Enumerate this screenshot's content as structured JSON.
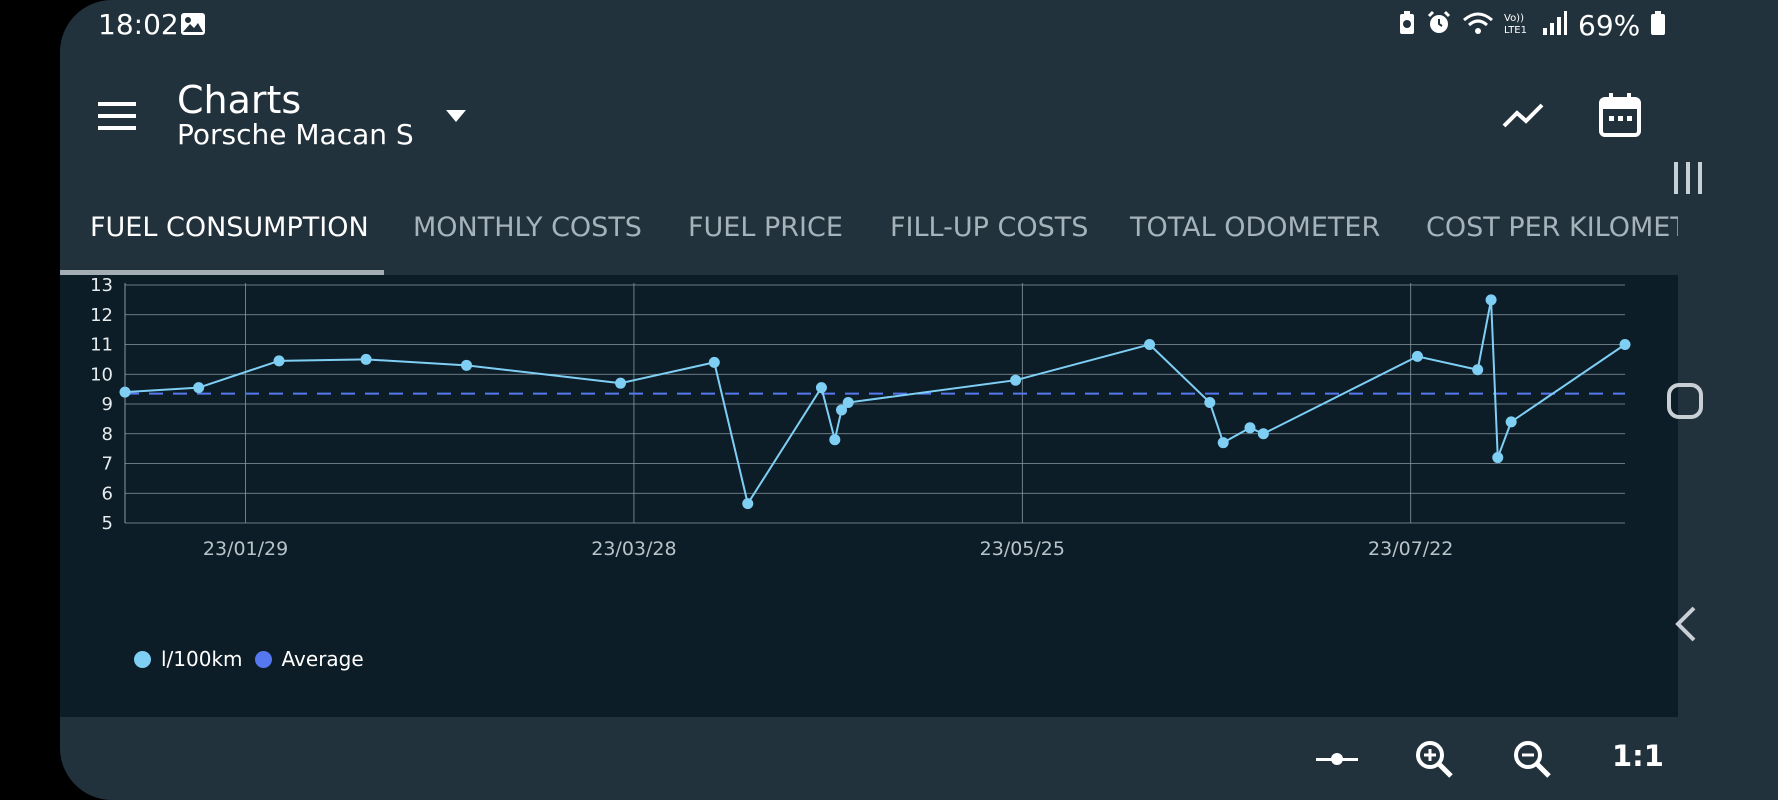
{
  "status_bar": {
    "time": "18:02",
    "battery_percent": "69%",
    "icons": [
      "image-icon",
      "battery-saver-icon",
      "alarm-icon",
      "wifi-icon",
      "volte-icon",
      "signal-icon",
      "battery-icon"
    ],
    "volte_label": "Vo)) LTE1"
  },
  "app_bar": {
    "title": "Charts",
    "subtitle": "Porsche Macan S",
    "icons": [
      "menu-icon",
      "dropdown-arrow-icon",
      "trend-chart-icon",
      "calendar-icon"
    ]
  },
  "tabs": [
    {
      "label": "FUEL CONSUMPTION",
      "active": true
    },
    {
      "label": "MONTHLY COSTS",
      "active": false
    },
    {
      "label": "FUEL PRICE",
      "active": false
    },
    {
      "label": "FILL-UP COSTS",
      "active": false
    },
    {
      "label": "TOTAL ODOMETER",
      "active": false
    },
    {
      "label": "COST PER KILOMETR",
      "active": false
    }
  ],
  "chart_data": {
    "type": "line",
    "ylim": [
      5,
      13
    ],
    "y_ticks": [
      13,
      12,
      11,
      10,
      9,
      8,
      7,
      6,
      5
    ],
    "x_tick_labels": [
      "23/01/29",
      "23/03/28",
      "23/05/25",
      "23/07/22"
    ],
    "x_tick_dates": [
      "2023-01-29",
      "2023-03-28",
      "2023-05-25",
      "2023-07-22"
    ],
    "xlim": [
      "2023-01-11",
      "2023-08-23"
    ],
    "grid": true,
    "legend_position": "bottom-left",
    "series": [
      {
        "name": "l/100km",
        "color": "#7fcff5",
        "x": [
          "2023-01-11",
          "2023-01-22",
          "2023-02-03",
          "2023-02-16",
          "2023-03-03",
          "2023-03-26",
          "2023-04-09",
          "2023-04-14",
          "2023-04-25",
          "2023-04-27",
          "2023-04-28",
          "2023-04-29",
          "2023-05-24",
          "2023-06-13",
          "2023-06-22",
          "2023-06-24",
          "2023-06-28",
          "2023-06-30",
          "2023-07-23",
          "2023-08-01",
          "2023-08-03",
          "2023-08-04",
          "2023-08-06",
          "2023-08-23"
        ],
        "values": [
          9.4,
          9.55,
          10.45,
          10.5,
          10.3,
          9.7,
          10.4,
          5.65,
          9.55,
          7.8,
          8.8,
          9.05,
          9.8,
          11.0,
          9.05,
          7.7,
          8.2,
          8.0,
          10.6,
          10.15,
          12.5,
          7.2,
          8.4,
          11.0
        ]
      },
      {
        "name": "Average",
        "color": "#5578f0",
        "style": "dashed",
        "values": [
          9.35
        ]
      }
    ]
  },
  "bottom_bar": {
    "icons": [
      "zoom-reset-icon",
      "zoom-in-icon",
      "zoom-out-icon"
    ],
    "ratio_label": "1:1"
  },
  "nav_bar": {
    "icons": [
      "recent-apps-icon",
      "home-icon",
      "back-icon"
    ]
  }
}
